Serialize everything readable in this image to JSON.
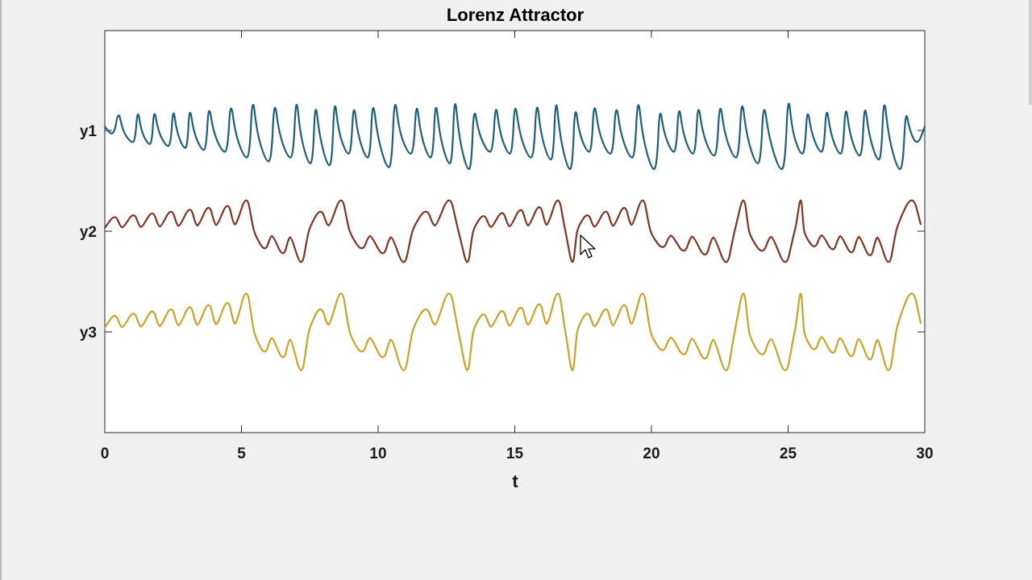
{
  "chart_data": {
    "type": "line",
    "title": "Lorenz Attractor",
    "xlabel": "t",
    "ylabel": "",
    "xlim": [
      0,
      30
    ],
    "x_ticks": [
      0,
      5,
      10,
      15,
      20,
      25,
      30
    ],
    "y_tick_labels": [
      "y1",
      "y2",
      "y3"
    ],
    "grid": false,
    "legend": "none",
    "series": [
      {
        "label": "y1",
        "color": "#1f5f7a",
        "peaks_t": [
          0.5,
          1.2,
          1.8,
          2.5,
          3.1,
          3.8,
          4.6,
          5.4,
          6.2,
          7.0,
          7.7,
          8.4,
          9.1,
          9.8,
          10.6,
          11.4,
          12.1,
          12.8,
          13.5,
          14.3,
          15.0,
          15.8,
          16.5,
          17.2,
          17.9,
          18.7,
          19.5,
          20.3,
          21.0,
          21.7,
          22.5,
          23.3,
          24.1,
          25.0,
          25.7,
          26.4,
          27.1,
          27.8,
          28.5,
          29.3
        ],
        "peaks_y": [
          0.55,
          0.6,
          0.62,
          0.65,
          0.68,
          0.75,
          0.85,
          1.0,
          0.9,
          1.0,
          0.85,
          0.95,
          0.8,
          0.9,
          1.0,
          0.85,
          0.9,
          1.05,
          0.7,
          0.8,
          0.85,
          0.9,
          1.0,
          0.75,
          0.85,
          0.8,
          1.0,
          0.7,
          0.75,
          0.8,
          0.85,
          0.95,
          0.85,
          1.05,
          0.65,
          0.7,
          0.75,
          0.8,
          1.0,
          0.6
        ],
        "troughs_y": [
          -0.3,
          -0.35,
          -0.4,
          -0.45,
          -0.5,
          -0.55,
          -0.7,
          -0.8,
          -0.7,
          -0.85,
          -0.9,
          -0.6,
          -0.7,
          -0.95,
          -0.6,
          -0.7,
          -0.85,
          -1.0,
          -0.55,
          -0.6,
          -0.7,
          -0.75,
          -1.0,
          -0.55,
          -0.6,
          -0.7,
          -1.0,
          -0.55,
          -0.6,
          -0.65,
          -0.7,
          -0.85,
          -1.0,
          -0.6,
          -0.55,
          -0.6,
          -0.65,
          -0.75,
          -1.0,
          -0.4
        ]
      },
      {
        "label": "y2",
        "color": "#7b3522",
        "switch_t": [
          0,
          5.5,
          7.5,
          9.0,
          11.3,
          13.0,
          13.5,
          16.9,
          17.3,
          20.0,
          23.1,
          23.6,
          25.3,
          25.6,
          29.0,
          30
        ],
        "regimes": [
          1,
          -1,
          1,
          -1,
          1,
          -1,
          1,
          -1,
          1,
          -1,
          1,
          -1,
          1,
          -1,
          1
        ]
      },
      {
        "label": "y3",
        "color": "#c9a227"
      }
    ]
  }
}
